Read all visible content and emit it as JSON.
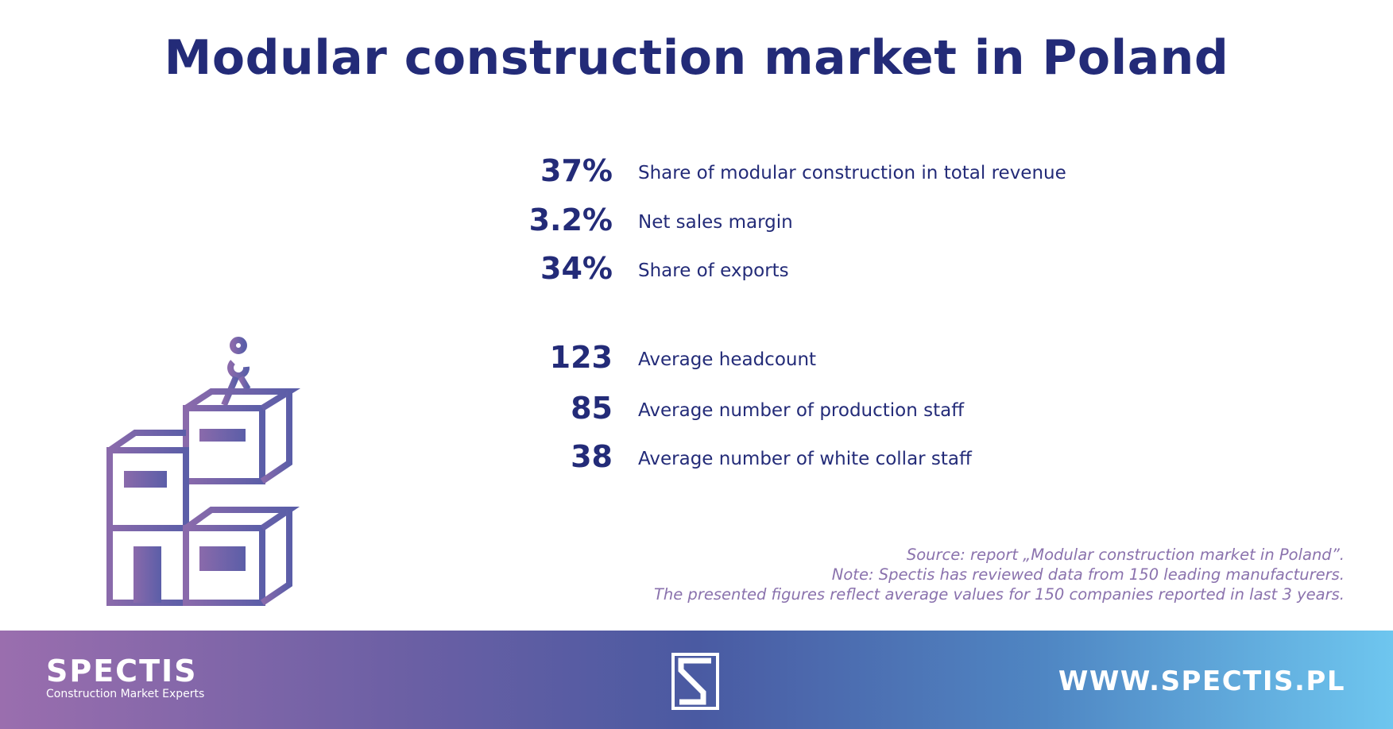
{
  "title": "Modular construction market in Poland",
  "stats": [
    {
      "value": "37%",
      "label": "Share of modular construction in total revenue"
    },
    {
      "value": "3.2%",
      "label": "Net sales margin"
    },
    {
      "value": "34%",
      "label": "Share of exports"
    },
    {
      "value": "123",
      "label": "Average headcount"
    },
    {
      "value": "85",
      "label": "Average number of production staff"
    },
    {
      "value": "38",
      "label": "Average number of white collar staff"
    }
  ],
  "source": {
    "line1": "Source: report „Modular construction market in Poland”.",
    "line2": "Note: Spectis has reviewed data from 150 leading manufacturers.",
    "line3": "The presented figures reflect average values for 150 companies reported in last 3 years."
  },
  "footer": {
    "brand": "SPECTIS",
    "tagline": "Construction Market Experts",
    "logo_letter": "S",
    "url": "WWW.SPECTIS.PL"
  },
  "icon": "modular-buildings-crane-hook-icon",
  "colors": {
    "title": "#232b78",
    "icon_start": "#8a6aab",
    "icon_end": "#5b5ea8",
    "footer_start": "#9a6eae",
    "footer_end": "#6ec6ef"
  }
}
